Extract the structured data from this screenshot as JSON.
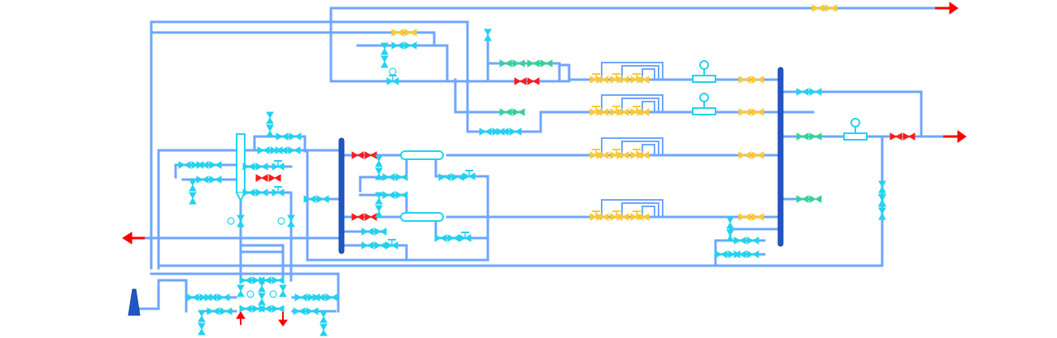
{
  "diagram": {
    "background": "#ffffff",
    "colors": {
      "pipe": "#6ea6ff",
      "header": "#1f56c6",
      "valve_cyan": "#22d3ee",
      "valve_green": "#34d399",
      "valve_red": "#ff1a1a",
      "valve_yellow": "#ffc935",
      "flow_arrow": "#ff0000",
      "instrument": "#22d3ee"
    },
    "icons": [
      "gate-valve-icon",
      "control-valve-icon",
      "flow-arrow-icon",
      "vertical-header-icon",
      "heat-exchanger-icon",
      "pressure-gauge-icon",
      "column-vessel-icon",
      "stack-icon",
      "instrument-bubble-icon"
    ],
    "valve_rows": {
      "cyan_pairs": 38,
      "yellow_pairs": 18,
      "green_pairs": 6,
      "red_pairs": 6
    }
  }
}
